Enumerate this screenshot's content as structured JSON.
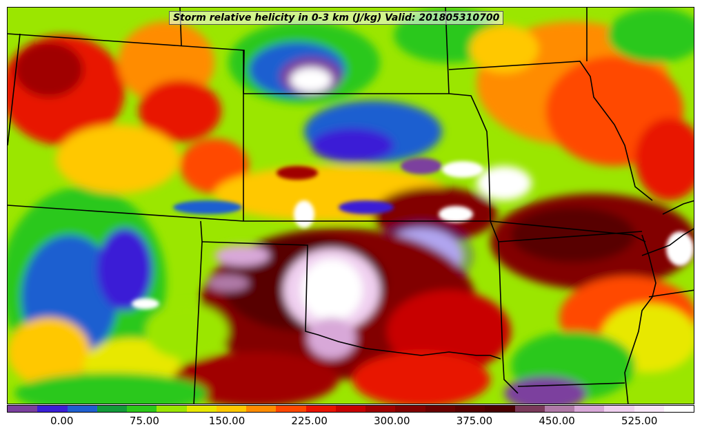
{
  "title": "Storm relative helicity in 0-3 km (J/kg) Valid: 201805310700",
  "colorbar": {
    "colors": [
      "#7b3f9e",
      "#3a1fd6",
      "#1f5fd0",
      "#139a3a",
      "#2cc81a",
      "#9be600",
      "#e8e800",
      "#ffc800",
      "#ff8c00",
      "#ff4800",
      "#e81400",
      "#c80000",
      "#a00000",
      "#820000",
      "#6a0000",
      "#580000",
      "#4a0000",
      "#7a3a5a",
      "#b07aa8",
      "#d8a8d8",
      "#f0d0f0",
      "#fae8fa",
      "#ffffff"
    ],
    "ticks": [
      "0.00",
      "75.00",
      "150.00",
      "225.00",
      "300.00",
      "375.00",
      "450.00",
      "525.00"
    ],
    "tick_values": [
      0,
      75,
      150,
      225,
      300,
      375,
      450,
      525
    ],
    "min": -50,
    "max": 575
  }
}
